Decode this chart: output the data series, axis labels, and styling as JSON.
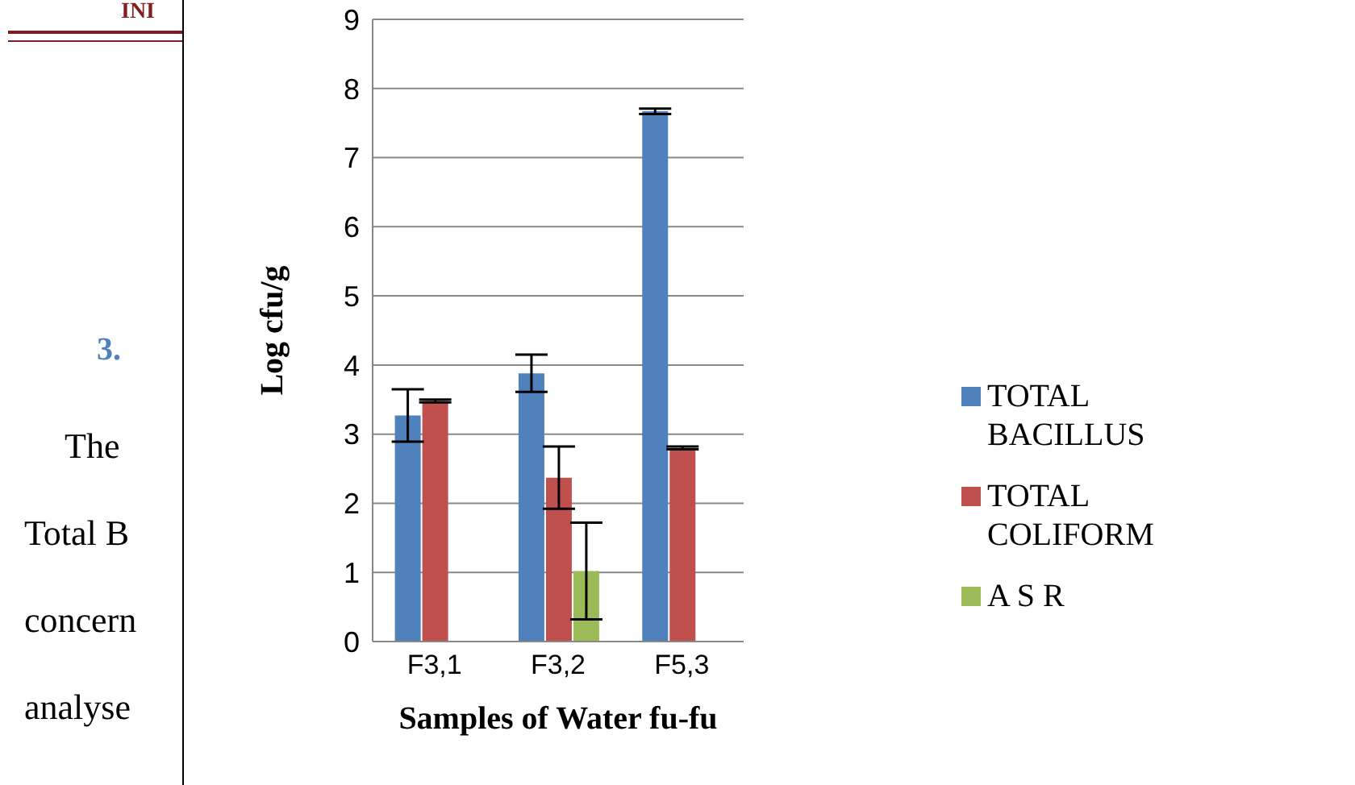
{
  "chart_data": {
    "type": "bar",
    "xlabel": "Samples of Water fu-fu",
    "ylabel": "Log cfu/g",
    "categories": [
      "F3,1",
      "F3,2",
      "F5,3"
    ],
    "series": [
      {
        "name": "TOTAL BACILLUS",
        "color": "#4f81bd",
        "values": [
          3.27,
          3.88,
          7.67
        ],
        "errors": [
          0.38,
          0.27,
          0.04
        ]
      },
      {
        "name": "TOTAL COLIFORM",
        "color": "#c0504d",
        "values": [
          3.48,
          2.37,
          2.8
        ],
        "errors": [
          0.02,
          0.45,
          0.02
        ]
      },
      {
        "name": "A S R",
        "color": "#9bbb59",
        "values": [
          0,
          1.02,
          0
        ],
        "errors": [
          null,
          0.7,
          null
        ]
      }
    ],
    "ylim": [
      0,
      9
    ],
    "yticks": [
      0,
      1,
      2,
      3,
      4,
      5,
      6,
      7,
      8,
      9
    ],
    "grid": "y",
    "legend": "right",
    "annotations": [
      "INI",
      "3.",
      "The",
      "Total B",
      "concern",
      "analyse"
    ]
  }
}
